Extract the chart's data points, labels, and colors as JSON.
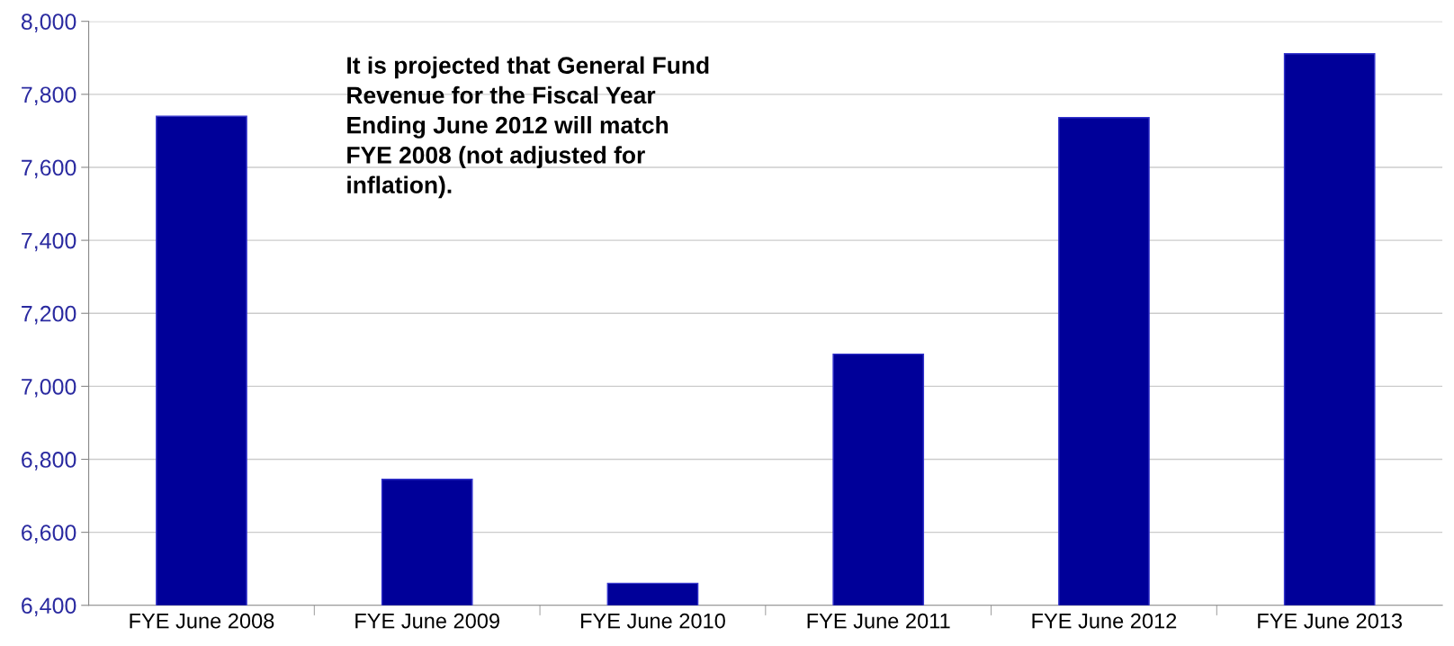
{
  "chart_data": {
    "type": "bar",
    "categories": [
      "FYE June 2008",
      "FYE June 2009",
      "FYE June 2010",
      "FYE June 2011",
      "FYE June 2012",
      "FYE June 2013"
    ],
    "values": [
      7740,
      6745,
      6460,
      7088,
      7736,
      7911
    ],
    "color": "#000099",
    "ylim": [
      6400,
      8000
    ],
    "yticks": [
      {
        "value": 6400,
        "label": "6,400"
      },
      {
        "value": 6600,
        "label": "6,600"
      },
      {
        "value": 6800,
        "label": "6,800"
      },
      {
        "value": 7000,
        "label": "7,000"
      },
      {
        "value": 7200,
        "label": "7,200"
      },
      {
        "value": 7400,
        "label": "7,400"
      },
      {
        "value": 7600,
        "label": "7,600"
      },
      {
        "value": 7800,
        "label": "7,800"
      },
      {
        "value": 8000,
        "label": "8,000"
      }
    ],
    "grid": "y",
    "annotations": [
      "It is projected that General Fund\nRevenue for the Fiscal Year\nEnding June 2012 will match\nFYE 2008 (not adjusted for\ninflation)."
    ]
  }
}
